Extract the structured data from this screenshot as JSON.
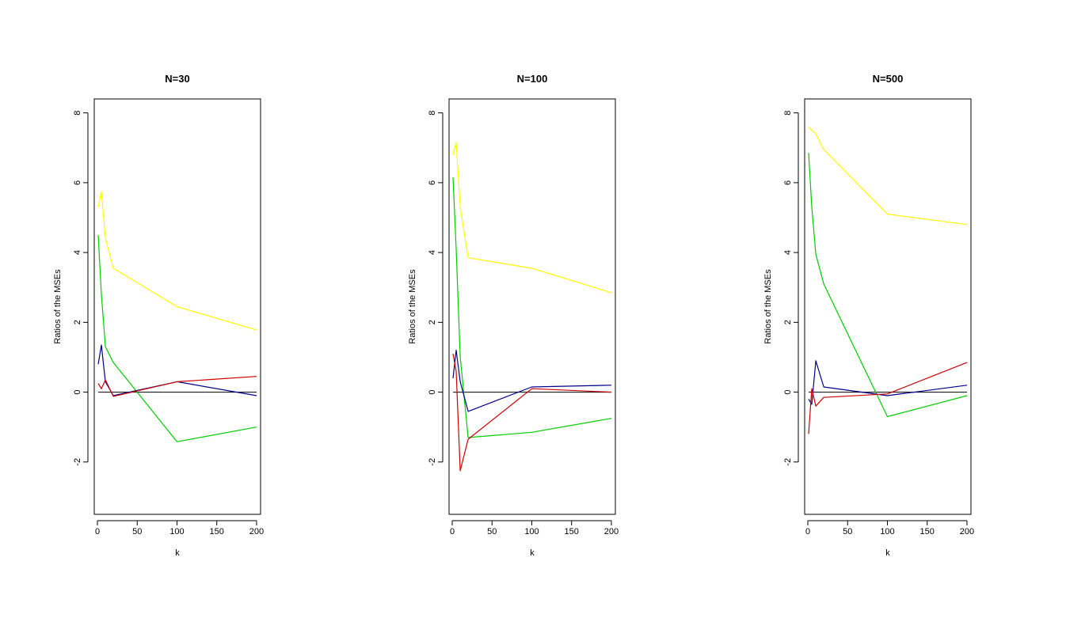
{
  "chart_data": [
    {
      "type": "line",
      "title": "N=30",
      "xlabel": "k",
      "ylabel": "Ratios of the MSEs",
      "xlim": [
        -4,
        205
      ],
      "ylim": [
        -3.5,
        8.4
      ],
      "xticks": [
        0,
        50,
        100,
        150,
        200
      ],
      "yticks": [
        -2,
        0,
        2,
        4,
        6,
        8
      ],
      "grid": false,
      "legend": "none",
      "reference_line": {
        "y": 0,
        "x_from": 1,
        "x_to": 200,
        "color": "#000000"
      },
      "series": [
        {
          "color": "#ffff00",
          "x": [
            1,
            5,
            10,
            20,
            100,
            200
          ],
          "y": [
            5.3,
            5.75,
            4.4,
            3.55,
            2.45,
            1.78
          ]
        },
        {
          "color": "#00cd00",
          "x": [
            1,
            5,
            10,
            20,
            100,
            200
          ],
          "y": [
            4.5,
            2.8,
            1.3,
            0.85,
            -1.42,
            -1.0
          ]
        },
        {
          "color": "#00008b",
          "x": [
            1,
            5,
            10,
            20,
            100,
            200
          ],
          "y": [
            0.8,
            1.35,
            0.3,
            -0.1,
            0.3,
            -0.1
          ]
        },
        {
          "color": "#cd0000",
          "x": [
            1,
            5,
            10,
            20,
            100,
            200
          ],
          "y": [
            0.25,
            0.1,
            0.35,
            -0.12,
            0.3,
            0.45
          ]
        }
      ]
    },
    {
      "type": "line",
      "title": "N=100",
      "xlabel": "k",
      "ylabel": "Ratios of the MSEs",
      "xlim": [
        -4,
        205
      ],
      "ylim": [
        -3.5,
        8.4
      ],
      "xticks": [
        0,
        50,
        100,
        150,
        200
      ],
      "yticks": [
        -2,
        0,
        2,
        4,
        6,
        8
      ],
      "grid": false,
      "legend": "none",
      "reference_line": {
        "y": 0,
        "x_from": 1,
        "x_to": 200,
        "color": "#000000"
      },
      "series": [
        {
          "color": "#ffff00",
          "x": [
            1,
            5,
            10,
            20,
            100,
            200
          ],
          "y": [
            6.8,
            7.15,
            5.3,
            3.85,
            3.55,
            2.85
          ]
        },
        {
          "color": "#00cd00",
          "x": [
            1,
            5,
            10,
            20,
            100,
            200
          ],
          "y": [
            6.15,
            4.1,
            1.0,
            -1.3,
            -1.15,
            -0.75
          ]
        },
        {
          "color": "#00008b",
          "x": [
            1,
            5,
            10,
            20,
            100,
            200
          ],
          "y": [
            0.4,
            1.2,
            0.3,
            -0.55,
            0.15,
            0.2
          ]
        },
        {
          "color": "#cd0000",
          "x": [
            1,
            5,
            10,
            20,
            100,
            200
          ],
          "y": [
            1.1,
            0.6,
            -2.25,
            -1.35,
            0.1,
            0.0
          ]
        }
      ]
    },
    {
      "type": "line",
      "title": "N=500",
      "xlabel": "k",
      "ylabel": "Ratios of the MSEs",
      "xlim": [
        -4,
        205
      ],
      "ylim": [
        -3.5,
        8.4
      ],
      "xticks": [
        0,
        50,
        100,
        150,
        200
      ],
      "yticks": [
        -2,
        0,
        2,
        4,
        6,
        8
      ],
      "grid": false,
      "legend": "none",
      "reference_line": {
        "y": 0,
        "x_from": 1,
        "x_to": 200,
        "color": "#000000"
      },
      "series": [
        {
          "color": "#ffff00",
          "x": [
            1,
            5,
            10,
            20,
            100,
            200
          ],
          "y": [
            7.6,
            7.5,
            7.4,
            6.95,
            5.1,
            4.8
          ]
        },
        {
          "color": "#00cd00",
          "x": [
            1,
            5,
            10,
            20,
            100,
            200
          ],
          "y": [
            6.85,
            5.3,
            3.95,
            3.1,
            -0.7,
            -0.1
          ]
        },
        {
          "color": "#00008b",
          "x": [
            1,
            5,
            10,
            20,
            100,
            200
          ],
          "y": [
            -0.2,
            -0.35,
            0.9,
            0.15,
            -0.1,
            0.2
          ]
        },
        {
          "color": "#cd0000",
          "x": [
            1,
            5,
            10,
            20,
            100,
            200
          ],
          "y": [
            -1.2,
            0.1,
            -0.4,
            -0.15,
            -0.05,
            0.85
          ]
        }
      ]
    }
  ]
}
